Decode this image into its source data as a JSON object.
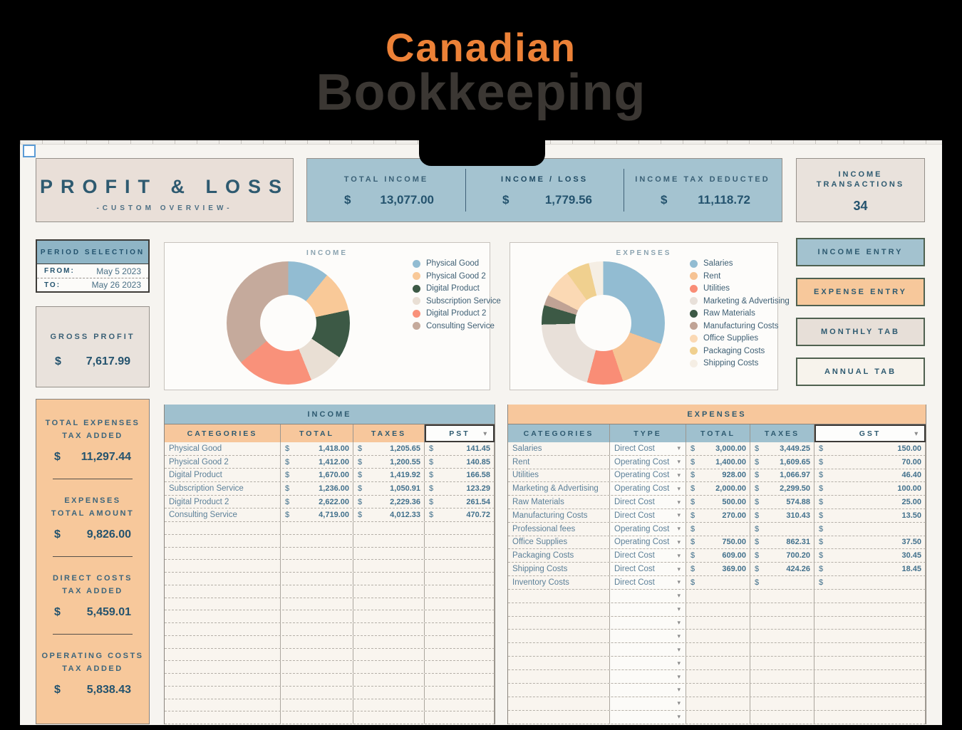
{
  "brand": {
    "line1": "Canadian",
    "line2": "Bookkeeping"
  },
  "title_card": {
    "title": "PROFIT & LOSS",
    "subtitle": "-CUSTOM OVERVIEW-"
  },
  "summary_bar": {
    "items": [
      {
        "label": "TOTAL INCOME",
        "currency": "$",
        "value": "13,077.00",
        "emphasis": false
      },
      {
        "label": "INCOME / LOSS",
        "currency": "$",
        "value": "1,779.56",
        "emphasis": true
      },
      {
        "label": "INCOME TAX DEDUCTED",
        "currency": "$",
        "value": "11,118.72",
        "emphasis": false
      }
    ]
  },
  "transactions_card": {
    "label_lines": [
      "INCOME",
      "TRANSACTIONS"
    ],
    "value": "34"
  },
  "period_card": {
    "title": "PERIOD SELECTION",
    "rows": [
      {
        "label": "FROM:",
        "value": "May 5 2023"
      },
      {
        "label": "TO:",
        "value": "May 26 2023"
      }
    ]
  },
  "gross_profit_card": {
    "label": "GROSS PROFIT",
    "currency": "$",
    "value": "7,617.99"
  },
  "expense_summary_card": {
    "blocks": [
      {
        "label_lines": [
          "TOTAL EXPENSES",
          "TAX ADDED"
        ],
        "currency": "$",
        "value": "11,297.44"
      },
      {
        "label_lines": [
          "EXPENSES",
          "TOTAL AMOUNT"
        ],
        "currency": "$",
        "value": "9,826.00"
      },
      {
        "label_lines": [
          "DIRECT COSTS",
          "TAX ADDED"
        ],
        "currency": "$",
        "value": "5,459.01"
      },
      {
        "label_lines": [
          "OPERATING COSTS",
          "TAX ADDED"
        ],
        "currency": "$",
        "value": "5,838.43"
      }
    ]
  },
  "action_buttons": [
    {
      "label": "INCOME ENTRY",
      "bg": "#a3c2cf"
    },
    {
      "label": "EXPENSE ENTRY",
      "bg": "#f7c89b"
    },
    {
      "label": "MONTHLY TAB",
      "bg": "#e7dfd8"
    },
    {
      "label": "ANNUAL TAB",
      "bg": "#f7f3ec"
    }
  ],
  "chart_data": [
    {
      "type": "pie",
      "subtype": "donut",
      "title": "INCOME",
      "legend_position": "right",
      "labels": [
        "Physical Good",
        "Physical Good 2",
        "Digital Product",
        "Subscription Service",
        "Digital Product 2",
        "Consulting Service"
      ],
      "values": [
        1418,
        1412,
        1670,
        1236,
        2622,
        4719
      ],
      "colors": [
        "#92bcd2",
        "#f9c998",
        "#3c5945",
        "#e9dfd4",
        "#f9917a",
        "#c5aa9c"
      ]
    },
    {
      "type": "pie",
      "subtype": "donut",
      "title": "EXPENSES",
      "legend_position": "right",
      "labels": [
        "Salaries",
        "Rent",
        "Utilities",
        "Marketing & Advertising",
        "Raw Materials",
        "Manufacturing Costs",
        "Office Supplies",
        "Packaging Costs",
        "Shipping Costs"
      ],
      "values": [
        3000,
        1400,
        928,
        2000,
        500,
        270,
        750,
        609,
        369
      ],
      "colors": [
        "#92bcd2",
        "#f6c394",
        "#f98d76",
        "#e8e0d9",
        "#3c5945",
        "#c0a395",
        "#fbd9b4",
        "#f0d08f",
        "#f5eee4"
      ]
    }
  ],
  "income_table": {
    "title": "INCOME",
    "headers": [
      "CATEGORIES",
      "TOTAL",
      "TAXES"
    ],
    "tax_selector": "PST",
    "currency": "$",
    "rows": [
      {
        "category": "Physical Good",
        "total": "1,418.00",
        "taxes": "1,205.65",
        "tax": "141.45"
      },
      {
        "category": "Physical Good 2",
        "total": "1,412.00",
        "taxes": "1,200.55",
        "tax": "140.85"
      },
      {
        "category": "Digital Product",
        "total": "1,670.00",
        "taxes": "1,419.92",
        "tax": "166.58"
      },
      {
        "category": "Subscription Service",
        "total": "1,236.00",
        "taxes": "1,050.91",
        "tax": "123.29"
      },
      {
        "category": "Digital Product 2",
        "total": "2,622.00",
        "taxes": "2,229.36",
        "tax": "261.54"
      },
      {
        "category": "Consulting Service",
        "total": "4,719.00",
        "taxes": "4,012.33",
        "tax": "470.72"
      }
    ],
    "empty_row_count": 16
  },
  "expenses_table": {
    "title": "EXPENSES",
    "headers": [
      "CATEGORIES",
      "TYPE",
      "TOTAL",
      "TAXES"
    ],
    "tax_selector": "GST",
    "currency": "$",
    "rows": [
      {
        "category": "Salaries",
        "type": "Direct Cost",
        "total": "3,000.00",
        "taxes": "3,449.25",
        "tax": "150.00"
      },
      {
        "category": "Rent",
        "type": "Operating Cost",
        "total": "1,400.00",
        "taxes": "1,609.65",
        "tax": "70.00"
      },
      {
        "category": "Utilities",
        "type": "Operating Cost",
        "total": "928.00",
        "taxes": "1,066.97",
        "tax": "46.40"
      },
      {
        "category": "Marketing & Advertising",
        "type": "Operating Cost",
        "total": "2,000.00",
        "taxes": "2,299.50",
        "tax": "100.00"
      },
      {
        "category": "Raw Materials",
        "type": "Direct Cost",
        "total": "500.00",
        "taxes": "574.88",
        "tax": "25.00"
      },
      {
        "category": "Manufacturing Costs",
        "type": "Direct Cost",
        "total": "270.00",
        "taxes": "310.43",
        "tax": "13.50"
      },
      {
        "category": "Professional fees",
        "type": "Operating Cost",
        "total": "",
        "taxes": "",
        "tax": ""
      },
      {
        "category": "Office Supplies",
        "type": "Operating Cost",
        "total": "750.00",
        "taxes": "862.31",
        "tax": "37.50"
      },
      {
        "category": "Packaging Costs",
        "type": "Direct Cost",
        "total": "609.00",
        "taxes": "700.20",
        "tax": "30.45"
      },
      {
        "category": "Shipping Costs",
        "type": "Direct Cost",
        "total": "369.00",
        "taxes": "424.26",
        "tax": "18.45"
      },
      {
        "category": "Inventory Costs",
        "type": "Direct Cost",
        "total": "",
        "taxes": "",
        "tax": ""
      }
    ],
    "empty_row_count": 10
  },
  "palette": {
    "brand_orange": "#ec8137",
    "brand_gray": "#3b3733",
    "blue": "#a4c3d0",
    "table_blue": "#9fc0ce",
    "orange": "#f7c89b",
    "beige": "#e9e2dc",
    "teal_text": "#2e5a70",
    "sheet_bg": "#f6f4f0"
  }
}
